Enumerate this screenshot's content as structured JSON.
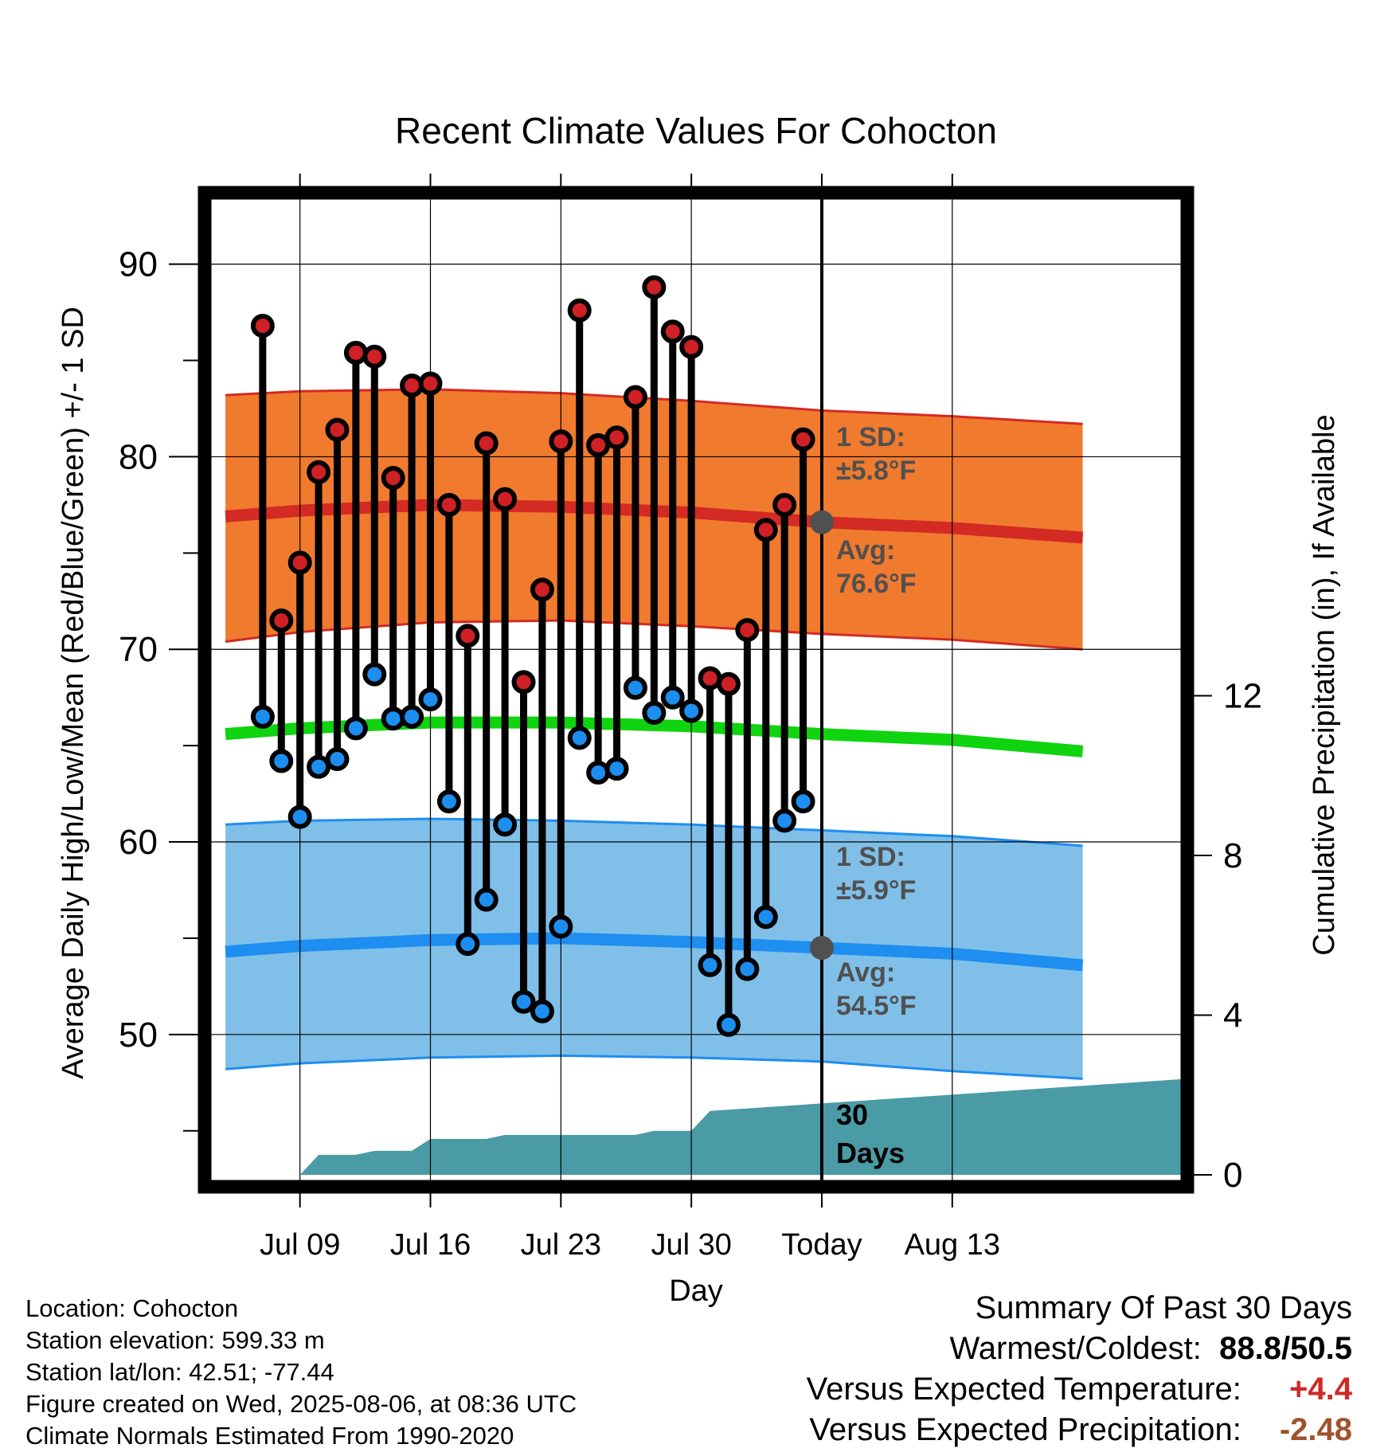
{
  "chart_data": {
    "type": "line",
    "title": "Recent Climate Values For Cohocton",
    "xlabel": "Day",
    "ylabel": "Average Daily High/Low/Mean (Red/Blue/Green) +/- 1 SD",
    "y2label": "Cumulative Precipitation (in), If Available",
    "xlim": [
      -4.9,
      47.4
    ],
    "ylim": [
      42.3,
      93.5
    ],
    "y2lim": [
      -0.2,
      24.5
    ],
    "x_tick_labels": [
      {
        "x": 0,
        "label": "Jul 09"
      },
      {
        "x": 7,
        "label": "Jul 16"
      },
      {
        "x": 14,
        "label": "Jul 23"
      },
      {
        "x": 21,
        "label": "Jul 30"
      },
      {
        "x": 28,
        "label": "Today"
      },
      {
        "x": 35,
        "label": "Aug 13"
      }
    ],
    "y_ticks": [
      50,
      60,
      70,
      80,
      90
    ],
    "y_minor_ticks": [
      45,
      55,
      65,
      75,
      85
    ],
    "y2_ticks": [
      0,
      4,
      8,
      12
    ],
    "today_x": 28,
    "grid": true,
    "daily_highs": [
      86.8,
      71.5,
      74.5,
      79.2,
      81.4,
      85.4,
      85.2,
      78.9,
      83.7,
      83.8,
      77.5,
      70.7,
      80.7,
      77.8,
      68.3,
      73.1,
      80.8,
      87.6,
      80.6,
      81.0,
      83.1,
      88.8,
      86.5,
      85.7,
      68.5,
      68.2,
      71.0,
      76.2,
      77.5,
      80.9
    ],
    "daily_lows": [
      66.5,
      64.2,
      61.3,
      63.9,
      64.3,
      65.9,
      68.7,
      66.4,
      66.5,
      67.4,
      62.1,
      54.7,
      57.0,
      60.9,
      51.7,
      51.2,
      55.6,
      65.4,
      63.6,
      63.8,
      68.0,
      66.7,
      67.5,
      66.8,
      53.6,
      50.5,
      53.4,
      56.1,
      61.1,
      62.1
    ],
    "daily_x_start": -2,
    "normals": {
      "x": [
        -4,
        0,
        7,
        14,
        21,
        28,
        35,
        42
      ],
      "avg_high": [
        76.9,
        77.2,
        77.5,
        77.4,
        77.1,
        76.6,
        76.3,
        75.8
      ],
      "avg_low": [
        54.3,
        54.6,
        54.9,
        55.0,
        54.8,
        54.5,
        54.2,
        53.6
      ],
      "avg_mean": [
        65.6,
        65.9,
        66.2,
        66.2,
        66.0,
        65.6,
        65.3,
        64.7
      ],
      "high_plus_sd": [
        83.2,
        83.4,
        83.5,
        83.3,
        82.9,
        82.4,
        82.1,
        81.7
      ],
      "high_minus_sd": [
        70.4,
        70.9,
        71.4,
        71.5,
        71.2,
        70.8,
        70.5,
        70.0
      ],
      "low_plus_sd": [
        60.9,
        61.1,
        61.2,
        61.1,
        60.9,
        60.6,
        60.3,
        59.8
      ],
      "low_minus_sd": [
        48.2,
        48.5,
        48.8,
        48.9,
        48.8,
        48.6,
        48.1,
        47.7
      ]
    },
    "precipitation": {
      "x": [
        0,
        1,
        3,
        4,
        6,
        7,
        10,
        11,
        14,
        18,
        19,
        21,
        22,
        47.4
      ],
      "cumulative": [
        0.0,
        0.5,
        0.5,
        0.6,
        0.6,
        0.9,
        0.9,
        1.0,
        1.0,
        1.0,
        1.1,
        1.1,
        1.6,
        2.4
      ]
    },
    "annotations": {
      "high_sd": "1 SD:",
      "high_sd_value": "±5.8°F",
      "high_avg": "Avg:",
      "high_avg_value": "76.6°F",
      "low_sd": "1 SD:",
      "low_sd_value": "±5.9°F",
      "low_avg": "Avg:",
      "low_avg_value": "54.5°F",
      "precip_label_1": "30",
      "precip_label_2": "Days"
    },
    "colors": {
      "high_band": "#f07a2e",
      "high_line": "#d42a24",
      "low_band": "#80bfe8",
      "low_line": "#1e8ef0",
      "mean_line": "#0fd40f",
      "precip": "#4a9ba5",
      "high_marker": "#cf2025",
      "low_marker": "#1c8ef0",
      "today_marker": "#505050",
      "annotation_text": "#505050"
    }
  },
  "meta": {
    "location": "Location: Cohocton",
    "elevation": "Station elevation: 599.33 m",
    "latlon": "Station lat/lon: 42.51; -77.44",
    "created": "Figure created on Wed, 2025-08-06, at 08:36 UTC",
    "normals": "Climate Normals Estimated From 1990-2020"
  },
  "summary": {
    "title": "Summary Of Past 30 Days",
    "warmest_label": "Warmest/Coldest:",
    "warmest_value": "88.8/50.5",
    "temp_label": "Versus Expected Temperature:",
    "temp_value": "+4.4",
    "temp_color": "#cf2a27",
    "precip_label": "Versus Expected Precipitation:",
    "precip_value": "-2.48",
    "precip_color": "#a0522d"
  }
}
